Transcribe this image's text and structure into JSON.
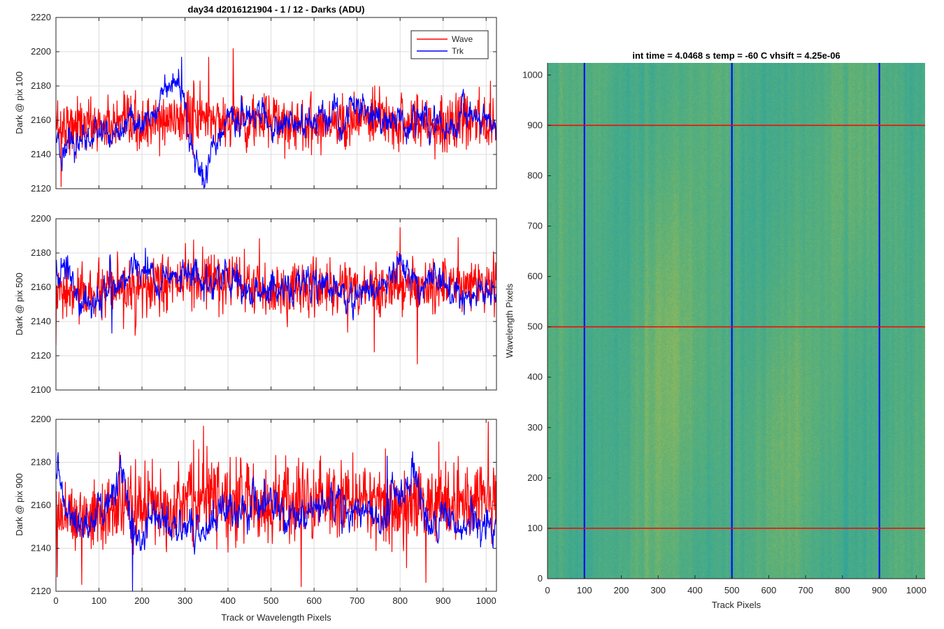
{
  "figure": {
    "colors": {
      "wave": "#ff0000",
      "trk": "#0000ff",
      "axes": "#262626",
      "grid": "#dcdcdc",
      "image_low": "#1fa0a8",
      "image_high": "#c8c040"
    }
  },
  "chart_data": [
    {
      "type": "line",
      "title": "day34 d2016121904 - 1 / 12 - Darks (ADU)",
      "xlabel": "",
      "ylabel": "Dark @ pix 100",
      "xlim": [
        0,
        1024
      ],
      "ylim": [
        2120,
        2220
      ],
      "xticks": [
        0,
        100,
        200,
        300,
        400,
        500,
        600,
        700,
        800,
        900,
        1000
      ],
      "yticks": [
        2120,
        2140,
        2160,
        2180,
        2200,
        2220
      ],
      "xtick_labels_visible": false,
      "grid": true,
      "legend": {
        "position": "top-right",
        "entries": [
          "Wave",
          "Trk"
        ]
      },
      "series": [
        {
          "name": "Wave",
          "color": "#ff0000",
          "mean": 2159,
          "noise": 8,
          "features": [
            [
              0,
              2158
            ],
            [
              100,
              2157
            ],
            [
              200,
              2156
            ],
            [
              300,
              2162
            ],
            [
              400,
              2160
            ],
            [
              500,
              2159
            ],
            [
              600,
              2158
            ],
            [
              700,
              2160
            ],
            [
              800,
              2159
            ],
            [
              900,
              2158
            ],
            [
              1024,
              2160
            ]
          ],
          "peaks": [
            [
              412,
              2202
            ],
            [
              355,
              2197
            ],
            [
              12,
              2121
            ],
            [
              1010,
              2183
            ]
          ]
        },
        {
          "name": "Trk",
          "color": "#0000ff",
          "mean": 2157,
          "noise": 4,
          "features": [
            [
              0,
              2150
            ],
            [
              20,
              2137
            ],
            [
              60,
              2150
            ],
            [
              120,
              2155
            ],
            [
              200,
              2157
            ],
            [
              250,
              2172
            ],
            [
              290,
              2185
            ],
            [
              300,
              2170
            ],
            [
              320,
              2140
            ],
            [
              345,
              2127
            ],
            [
              360,
              2145
            ],
            [
              400,
              2160
            ],
            [
              450,
              2162
            ],
            [
              500,
              2157
            ],
            [
              550,
              2158
            ],
            [
              650,
              2160
            ],
            [
              700,
              2168
            ],
            [
              750,
              2158
            ],
            [
              800,
              2160
            ],
            [
              850,
              2160
            ],
            [
              900,
              2155
            ],
            [
              950,
              2160
            ],
            [
              1000,
              2160
            ],
            [
              1024,
              2150
            ]
          ],
          "peaks": [
            [
              292,
              2197
            ],
            [
              340,
              2122
            ]
          ]
        }
      ]
    },
    {
      "type": "line",
      "title": "",
      "xlabel": "",
      "ylabel": "Dark @ pix 500",
      "xlim": [
        0,
        1024
      ],
      "ylim": [
        2100,
        2200
      ],
      "xticks": [
        0,
        100,
        200,
        300,
        400,
        500,
        600,
        700,
        800,
        900,
        1000
      ],
      "yticks": [
        2100,
        2120,
        2140,
        2160,
        2180,
        2200
      ],
      "xtick_labels_visible": false,
      "grid": true,
      "series": [
        {
          "name": "Wave",
          "color": "#ff0000",
          "mean": 2159,
          "noise": 8,
          "features": [
            [
              0,
              2155
            ],
            [
              200,
              2158
            ],
            [
              300,
              2165
            ],
            [
              400,
              2162
            ],
            [
              500,
              2158
            ],
            [
              600,
              2160
            ],
            [
              800,
              2160
            ],
            [
              1024,
              2162
            ]
          ],
          "peaks": [
            [
              800,
              2195
            ],
            [
              840,
              2115
            ],
            [
              0,
              2126
            ],
            [
              740,
              2122
            ]
          ]
        },
        {
          "name": "Trk",
          "color": "#0000ff",
          "mean": 2160,
          "noise": 4,
          "features": [
            [
              0,
              2170
            ],
            [
              20,
              2172
            ],
            [
              40,
              2155
            ],
            [
              80,
              2148
            ],
            [
              120,
              2158
            ],
            [
              150,
              2165
            ],
            [
              200,
              2172
            ],
            [
              250,
              2160
            ],
            [
              300,
              2167
            ],
            [
              350,
              2162
            ],
            [
              400,
              2163
            ],
            [
              450,
              2158
            ],
            [
              500,
              2160
            ],
            [
              550,
              2158
            ],
            [
              600,
              2162
            ],
            [
              650,
              2156
            ],
            [
              700,
              2155
            ],
            [
              750,
              2160
            ],
            [
              800,
              2170
            ],
            [
              850,
              2158
            ],
            [
              900,
              2160
            ],
            [
              950,
              2155
            ],
            [
              1000,
              2155
            ],
            [
              1024,
              2160
            ]
          ],
          "peaks": [
            [
              208,
              2183
            ],
            [
              130,
              2133
            ]
          ]
        }
      ]
    },
    {
      "type": "line",
      "title": "",
      "xlabel": "Track or Wavelength Pixels",
      "ylabel": "Dark @ pix 900",
      "xlim": [
        0,
        1024
      ],
      "ylim": [
        2120,
        2200
      ],
      "xticks": [
        0,
        100,
        200,
        300,
        400,
        500,
        600,
        700,
        800,
        900,
        1000
      ],
      "yticks": [
        2120,
        2140,
        2160,
        2180,
        2200
      ],
      "xtick_labels_visible": true,
      "grid": true,
      "series": [
        {
          "name": "Wave",
          "color": "#ff0000",
          "mean": 2160,
          "noise": 9,
          "features": [
            [
              0,
              2158
            ],
            [
              100,
              2155
            ],
            [
              200,
              2160
            ],
            [
              300,
              2162
            ],
            [
              400,
              2163
            ],
            [
              500,
              2160
            ],
            [
              600,
              2162
            ],
            [
              700,
              2163
            ],
            [
              800,
              2160
            ],
            [
              900,
              2162
            ],
            [
              1024,
              2162
            ]
          ],
          "peaks": [
            [
              343,
              2197
            ],
            [
              1005,
              2199
            ],
            [
              570,
              2122
            ],
            [
              860,
              2124
            ],
            [
              60,
              2123
            ]
          ]
        },
        {
          "name": "Trk",
          "color": "#0000ff",
          "mean": 2155,
          "noise": 4,
          "features": [
            [
              0,
              2175
            ],
            [
              20,
              2160
            ],
            [
              60,
              2150
            ],
            [
              100,
              2158
            ],
            [
              130,
              2165
            ],
            [
              150,
              2175
            ],
            [
              180,
              2152
            ],
            [
              200,
              2148
            ],
            [
              250,
              2155
            ],
            [
              300,
              2150
            ],
            [
              350,
              2150
            ],
            [
              400,
              2162
            ],
            [
              450,
              2158
            ],
            [
              500,
              2160
            ],
            [
              550,
              2152
            ],
            [
              600,
              2160
            ],
            [
              650,
              2158
            ],
            [
              700,
              2158
            ],
            [
              750,
              2155
            ],
            [
              800,
              2170
            ],
            [
              830,
              2175
            ],
            [
              870,
              2150
            ],
            [
              900,
              2158
            ],
            [
              950,
              2150
            ],
            [
              1000,
              2148
            ],
            [
              1024,
              2155
            ]
          ],
          "peaks": [
            [
              178,
              2120
            ],
            [
              770,
              2183
            ]
          ]
        }
      ]
    },
    {
      "type": "heatmap",
      "title": "int time = 4.0468 s    temp = -60 C    vhsift = 4.25e-06",
      "xlabel": "Track Pixels",
      "ylabel": "Wavelength Pixels",
      "xlim": [
        0,
        1024
      ],
      "ylim": [
        0,
        1024
      ],
      "xticks": [
        0,
        100,
        200,
        300,
        400,
        500,
        600,
        700,
        800,
        900,
        1000
      ],
      "yticks": [
        0,
        100,
        200,
        300,
        400,
        500,
        600,
        700,
        800,
        900,
        1000
      ],
      "grid": false,
      "vertical_markers": {
        "color": "#0000ff",
        "x": [
          100,
          500,
          900
        ]
      },
      "horizontal_markers": {
        "color": "#ff0000",
        "y": [
          100,
          500,
          900
        ]
      }
    }
  ]
}
